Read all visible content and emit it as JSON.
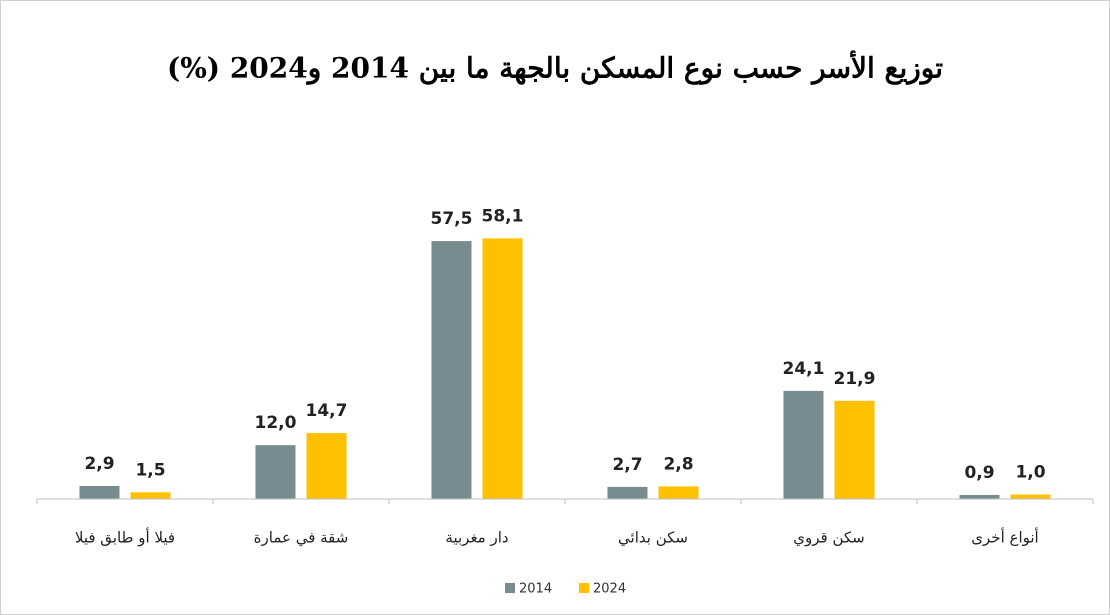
{
  "chart_data": {
    "type": "bar",
    "title": "توزيع الأسر حسب نوع المسكن بالجهة ما بين 2014 و2024 (%)",
    "categories": [
      "فيلا أو طابق فيلا",
      "شقة في عمارة",
      "دار مغربية",
      "سكن بدائي",
      "سكن قروي",
      "أنواع أخرى"
    ],
    "series": [
      {
        "name": "2014",
        "color": "#778b91",
        "values": [
          2.9,
          12.0,
          57.5,
          2.7,
          24.1,
          0.9
        ],
        "value_labels": [
          "2,9",
          "12,0",
          "57,5",
          "2,7",
          "24,1",
          "0,9"
        ]
      },
      {
        "name": "2024",
        "color": "#ffc000",
        "values": [
          1.5,
          14.7,
          58.1,
          2.8,
          21.9,
          1.0
        ],
        "value_labels": [
          "1,5",
          "14,7",
          "58,1",
          "2,8",
          "21,9",
          "1,0"
        ]
      }
    ],
    "ylim": [
      0,
      70
    ],
    "legend": "bottom"
  }
}
